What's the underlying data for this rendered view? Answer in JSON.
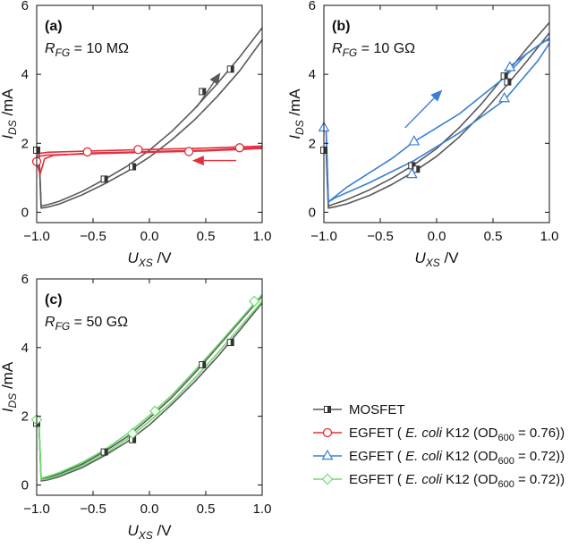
{
  "chart_data": [
    {
      "type": "line",
      "panel_label": "(a)",
      "annotation": {
        "var": "R",
        "sub": "FG",
        "rest": " = 10 MΩ"
      },
      "xlabel": {
        "var": "U",
        "sub": "XS",
        "rest": " /V"
      },
      "ylabel": {
        "var": "I",
        "sub": "DS",
        "rest": " /mA"
      },
      "xlim": [
        -1.0,
        1.0
      ],
      "ylim": [
        -0.3,
        6.0
      ],
      "xticks": [
        -1.0,
        -0.5,
        0.0,
        0.5,
        1.0
      ],
      "xtick_labels": [
        "−1.0",
        "−0.5",
        "0.0",
        "0.5",
        "1.0"
      ],
      "yticks": [
        0,
        2,
        4,
        6
      ],
      "ytick_labels": [
        "0",
        "2",
        "4",
        "6"
      ],
      "series": [
        {
          "name": "MOSFET",
          "color": "#595959",
          "marker": "half-square",
          "curves": [
            {
              "x": [
                -1.0,
                -0.98,
                -0.96,
                -0.9,
                -0.8,
                -0.6,
                -0.4,
                -0.2,
                0.0,
                0.2,
                0.4,
                0.6,
                0.8,
                1.0
              ],
              "y": [
                1.8,
                1.8,
                0.18,
                0.22,
                0.32,
                0.6,
                0.95,
                1.33,
                1.8,
                2.35,
                3.0,
                3.72,
                4.5,
                5.35
              ]
            },
            {
              "x": [
                -1.0,
                -0.98,
                -0.96,
                -0.9,
                -0.8,
                -0.6,
                -0.4,
                -0.2,
                0.0,
                0.2,
                0.4,
                0.6,
                0.8,
                1.0
              ],
              "y": [
                1.8,
                1.8,
                0.12,
                0.15,
                0.24,
                0.5,
                0.82,
                1.18,
                1.6,
                2.1,
                2.68,
                3.35,
                4.1,
                5.0
              ]
            }
          ],
          "markers": {
            "x": [
              -1.0,
              -0.4,
              -0.15,
              0.47,
              0.72
            ],
            "y": [
              1.8,
              0.96,
              1.32,
              3.5,
              4.15
            ]
          }
        },
        {
          "name": "EGFET (E. coli K12, OD600 = 0.76)",
          "color": "#e0303e",
          "marker": "circle",
          "curves": [
            {
              "x": [
                -1.0,
                -0.97,
                -0.93,
                -0.85,
                -0.5,
                0.0,
                0.5,
                1.0
              ],
              "y": [
                1.45,
                1.1,
                1.55,
                1.65,
                1.72,
                1.76,
                1.8,
                1.88
              ]
            },
            {
              "x": [
                -1.0,
                -0.9,
                -0.5,
                0.0,
                0.5,
                1.0
              ],
              "y": [
                1.7,
                1.74,
                1.78,
                1.82,
                1.86,
                1.92
              ]
            },
            {
              "x": [
                -1.0,
                -0.9,
                -0.5,
                0.0,
                0.5,
                1.0
              ],
              "y": [
                1.62,
                1.66,
                1.7,
                1.74,
                1.78,
                1.85
              ]
            }
          ],
          "markers": {
            "x": [
              -1.0,
              -0.55,
              -0.1,
              0.35,
              0.8
            ],
            "y": [
              1.47,
              1.75,
              1.82,
              1.76,
              1.87
            ]
          }
        }
      ],
      "arrows": [
        {
          "color": "#595959",
          "from": [
            0.42,
            3.05
          ],
          "to": [
            0.63,
            4.05
          ]
        },
        {
          "color": "#e0303e",
          "from": [
            0.77,
            1.5
          ],
          "to": [
            0.38,
            1.5
          ]
        }
      ]
    },
    {
      "type": "line",
      "panel_label": "(b)",
      "annotation": {
        "var": "R",
        "sub": "FG",
        "rest": " = 10 GΩ"
      },
      "xlabel": {
        "var": "U",
        "sub": "XS",
        "rest": " /V"
      },
      "ylabel": {
        "var": "I",
        "sub": "DS",
        "rest": " /mA"
      },
      "xlim": [
        -1.0,
        1.0
      ],
      "ylim": [
        -0.3,
        6.0
      ],
      "xticks": [
        -1.0,
        -0.5,
        0.0,
        0.5,
        1.0
      ],
      "xtick_labels": [
        "−1.0",
        "−0.5",
        "0.0",
        "0.5",
        "1.0"
      ],
      "yticks": [
        0,
        2,
        4,
        6
      ],
      "ytick_labels": [
        "0",
        "2",
        "4",
        "6"
      ],
      "series": [
        {
          "name": "MOSFET",
          "color": "#595959",
          "marker": "half-square",
          "curves": [
            {
              "x": [
                -1.0,
                -0.98,
                -0.96,
                -0.9,
                -0.8,
                -0.6,
                -0.4,
                -0.2,
                0.0,
                0.2,
                0.4,
                0.6,
                0.8,
                1.0
              ],
              "y": [
                1.8,
                1.8,
                0.18,
                0.25,
                0.36,
                0.64,
                0.98,
                1.38,
                1.85,
                2.45,
                3.15,
                3.95,
                4.75,
                5.5
              ]
            },
            {
              "x": [
                -1.0,
                -0.98,
                -0.96,
                -0.9,
                -0.8,
                -0.6,
                -0.4,
                -0.2,
                0.0,
                0.2,
                0.4,
                0.6,
                0.8,
                1.0
              ],
              "y": [
                1.8,
                1.8,
                0.12,
                0.16,
                0.24,
                0.48,
                0.8,
                1.18,
                1.62,
                2.18,
                2.85,
                3.6,
                4.38,
                5.2
              ]
            }
          ],
          "markers": {
            "x": [
              -1.0,
              -0.22,
              -0.18,
              0.6,
              0.63
            ],
            "y": [
              1.8,
              1.35,
              1.25,
              3.95,
              3.78
            ]
          }
        },
        {
          "name": "EGFET (E. coli K12, OD600 = 0.72)",
          "color": "#3a7fd5",
          "marker": "triangle",
          "curves": [
            {
              "x": [
                -1.0,
                -0.98,
                -0.96,
                -0.9,
                -0.6,
                -0.2,
                0.2,
                0.6,
                0.9,
                1.0
              ],
              "y": [
                2.4,
                2.4,
                0.3,
                0.42,
                0.85,
                1.5,
                2.3,
                3.25,
                4.4,
                4.9
              ]
            },
            {
              "x": [
                -1.0,
                -0.98,
                -0.96,
                -0.8,
                -0.4,
                -0.2,
                0.2,
                0.6,
                0.8,
                1.0
              ],
              "y": [
                2.4,
                2.4,
                0.3,
                0.72,
                1.55,
                2.05,
                2.85,
                3.9,
                4.6,
                5.05
              ]
            },
            {
              "x": [
                0.6,
                0.8,
                0.95,
                1.0
              ],
              "y": [
                4.1,
                4.6,
                4.95,
                5.0
              ]
            }
          ],
          "markers": {
            "x": [
              -1.0,
              -0.2,
              -0.22,
              0.6,
              0.65
            ],
            "y": [
              2.45,
              2.05,
              1.1,
              3.3,
              4.2
            ]
          }
        }
      ],
      "arrows": [
        {
          "color": "#3a7fd5",
          "from": [
            -0.28,
            2.45
          ],
          "to": [
            0.05,
            3.55
          ]
        }
      ]
    },
    {
      "type": "line",
      "panel_label": "(c)",
      "annotation": {
        "var": "R",
        "sub": "FG",
        "rest": " = 50 GΩ"
      },
      "xlabel": {
        "var": "U",
        "sub": "XS",
        "rest": " /V"
      },
      "ylabel": {
        "var": "I",
        "sub": "DS",
        "rest": " /mA"
      },
      "xlim": [
        -1.0,
        1.0
      ],
      "ylim": [
        -0.3,
        6.0
      ],
      "xticks": [
        -1.0,
        -0.5,
        0.0,
        0.5,
        1.0
      ],
      "xtick_labels": [
        "−1.0",
        "−0.5",
        "0.0",
        "0.5",
        "1.0"
      ],
      "yticks": [
        0,
        2,
        4,
        6
      ],
      "ytick_labels": [
        "0",
        "2",
        "4",
        "6"
      ],
      "series": [
        {
          "name": "MOSFET",
          "color": "#595959",
          "marker": "half-square",
          "curves": [
            {
              "x": [
                -1.0,
                -0.98,
                -0.96,
                -0.9,
                -0.8,
                -0.6,
                -0.4,
                -0.2,
                0.0,
                0.2,
                0.4,
                0.6,
                0.8,
                1.0
              ],
              "y": [
                1.8,
                1.8,
                0.18,
                0.22,
                0.32,
                0.6,
                0.97,
                1.4,
                1.95,
                2.55,
                3.25,
                4.0,
                4.75,
                5.5
              ]
            },
            {
              "x": [
                -1.0,
                -0.98,
                -0.96,
                -0.9,
                -0.8,
                -0.6,
                -0.4,
                -0.2,
                0.0,
                0.2,
                0.4,
                0.6,
                0.8,
                1.0
              ],
              "y": [
                1.8,
                1.8,
                0.12,
                0.15,
                0.24,
                0.5,
                0.85,
                1.25,
                1.75,
                2.35,
                3.0,
                3.72,
                4.5,
                5.3
              ]
            }
          ],
          "markers": {
            "x": [
              -1.0,
              -0.4,
              -0.15,
              0.47,
              0.72
            ],
            "y": [
              1.8,
              0.96,
              1.32,
              3.5,
              4.15
            ]
          }
        },
        {
          "name": "EGFET (E. coli K12, OD600 = 0.72)",
          "color": "#6fdc6f",
          "marker": "diamond",
          "curves": [
            {
              "x": [
                -1.0,
                -0.98,
                -0.96,
                -0.9,
                -0.8,
                -0.6,
                -0.4,
                -0.2,
                0.0,
                0.2,
                0.4,
                0.6,
                0.8,
                1.0
              ],
              "y": [
                1.9,
                1.9,
                0.2,
                0.25,
                0.36,
                0.65,
                1.02,
                1.48,
                2.02,
                2.62,
                3.32,
                4.05,
                4.8,
                5.55
              ]
            },
            {
              "x": [
                -1.0,
                -0.98,
                -0.96,
                -0.9,
                -0.8,
                -0.6,
                -0.4,
                -0.2,
                0.0,
                0.2,
                0.4,
                0.6,
                0.8,
                1.0
              ],
              "y": [
                1.9,
                1.9,
                0.15,
                0.18,
                0.28,
                0.55,
                0.9,
                1.33,
                1.85,
                2.42,
                3.1,
                3.82,
                4.58,
                5.35
              ]
            }
          ],
          "markers": {
            "x": [
              -1.0,
              -0.15,
              0.05,
              0.93
            ],
            "y": [
              1.9,
              1.5,
              2.15,
              5.35
            ]
          }
        }
      ],
      "arrows": []
    }
  ],
  "legend": [
    {
      "marker": "half-square",
      "color": "#595959",
      "parts": [
        {
          "t": "MOSFET"
        }
      ]
    },
    {
      "marker": "circle",
      "color": "#e0303e",
      "parts": [
        {
          "t": "EGFET ( "
        },
        {
          "t": "E. coli",
          "italic": true
        },
        {
          "t": " K12 (OD"
        },
        {
          "t": "600",
          "sub": true
        },
        {
          "t": " = 0.76))"
        }
      ]
    },
    {
      "marker": "triangle",
      "color": "#3a7fd5",
      "parts": [
        {
          "t": "EGFET ( "
        },
        {
          "t": "E. coli",
          "italic": true
        },
        {
          "t": " K12 (OD"
        },
        {
          "t": "600",
          "sub": true
        },
        {
          "t": " = 0.72))"
        }
      ]
    },
    {
      "marker": "diamond",
      "color": "#6fdc6f",
      "parts": [
        {
          "t": "EGFET ( "
        },
        {
          "t": "E. coli",
          "italic": true
        },
        {
          "t": " K12 (OD"
        },
        {
          "t": "600",
          "sub": true
        },
        {
          "t": " = 0.72))"
        }
      ]
    }
  ]
}
